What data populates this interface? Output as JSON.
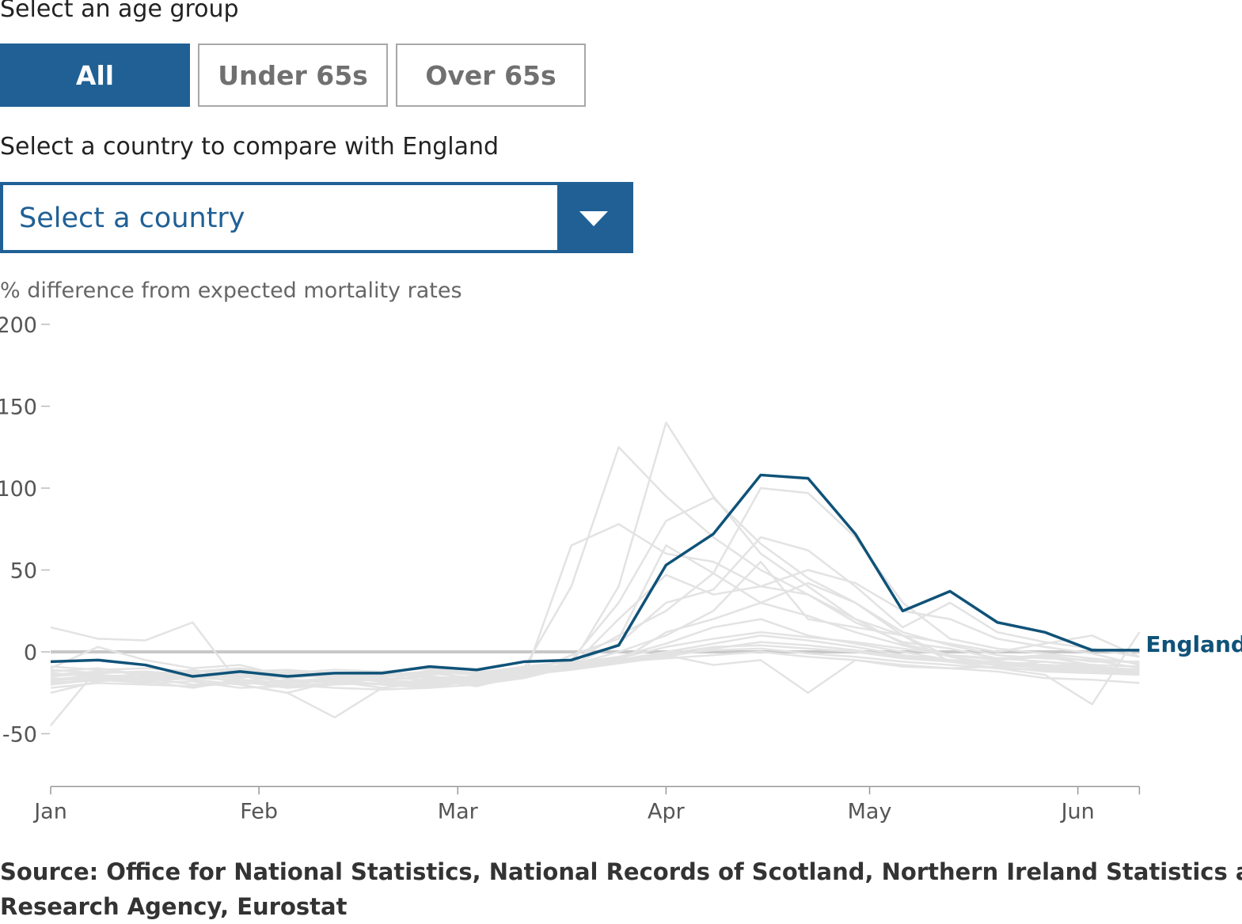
{
  "controls": {
    "age_label": "Select an age group",
    "age_buttons": [
      "All",
      "Under 65s",
      "Over 65s"
    ],
    "age_selected": "All",
    "country_label": "Select a country to compare with England",
    "country_placeholder": "Select a country"
  },
  "colors": {
    "accent": "#206095",
    "highlight_line": "#0f5278",
    "background_lines": "#e3e3e3",
    "zero_line": "#c8c8c8"
  },
  "chart_data": {
    "type": "line",
    "ylabel": "% difference from expected mortality rates",
    "ylim": [
      -75,
      200
    ],
    "yticks": [
      200,
      150,
      100,
      50,
      0,
      -50
    ],
    "xticks": [
      {
        "label": "Jan",
        "week": 0
      },
      {
        "label": "Feb",
        "week": 4.4
      },
      {
        "label": "Mar",
        "week": 8.6
      },
      {
        "label": "Apr",
        "week": 13
      },
      {
        "label": "May",
        "week": 17.3
      },
      {
        "label": "Jun",
        "week": 21.7
      }
    ],
    "x": [
      0,
      1,
      2,
      3,
      4,
      5,
      6,
      7,
      8,
      9,
      10,
      11,
      12,
      13,
      14,
      15,
      16,
      17,
      18,
      19,
      20,
      21,
      22,
      23
    ],
    "highlight": {
      "name": "England",
      "values": [
        -6,
        -5,
        -8,
        -15,
        -12,
        -15,
        -13,
        -13,
        -9,
        -11,
        -6,
        -5,
        4,
        53,
        72,
        108,
        106,
        72,
        25,
        37,
        18,
        12,
        1,
        1
      ]
    },
    "series": [
      {
        "values": [
          -18,
          -14,
          -16,
          -13,
          -15,
          -18,
          -16,
          -17,
          -15,
          -17,
          -12,
          -8,
          40,
          140,
          95,
          60,
          40,
          20,
          5,
          -2,
          -5,
          -3,
          -8,
          -9
        ]
      },
      {
        "values": [
          -12,
          -10,
          -14,
          -12,
          -11,
          -13,
          -15,
          -14,
          -12,
          -14,
          -10,
          40,
          125,
          95,
          70,
          50,
          35,
          18,
          6,
          2,
          -4,
          -2,
          -6,
          -6
        ]
      },
      {
        "values": [
          -15,
          -13,
          -12,
          -14,
          -16,
          -12,
          -14,
          -15,
          -13,
          -16,
          -11,
          -5,
          30,
          80,
          94,
          66,
          45,
          30,
          12,
          4,
          -2,
          -4,
          -5,
          -10
        ]
      },
      {
        "values": [
          -20,
          -17,
          -19,
          -18,
          -22,
          -21,
          -16,
          -18,
          -20,
          -19,
          -14,
          -6,
          10,
          25,
          48,
          100,
          97,
          70,
          30,
          8,
          2,
          -1,
          -4,
          -7
        ]
      },
      {
        "values": [
          -25,
          -18,
          -16,
          -20,
          -18,
          -22,
          -20,
          -19,
          -21,
          -18,
          -15,
          -8,
          5,
          30,
          38,
          70,
          62,
          40,
          15,
          30,
          12,
          6,
          2,
          -3
        ]
      },
      {
        "values": [
          15,
          8,
          7,
          18,
          -20,
          -25,
          -40,
          -22,
          -18,
          -16,
          -12,
          -8,
          0,
          10,
          25,
          55,
          20,
          15,
          10,
          5,
          0,
          5,
          10,
          -3
        ]
      },
      {
        "values": [
          -45,
          -10,
          -15,
          -12,
          -20,
          -25,
          -18,
          -20,
          -22,
          -20,
          -16,
          65,
          78,
          60,
          55,
          40,
          35,
          20,
          10,
          -6,
          -10,
          -14,
          -32,
          12
        ]
      },
      {
        "values": [
          -10,
          3,
          -5,
          -10,
          -8,
          -15,
          -14,
          -18,
          -11,
          -13,
          -9,
          -6,
          -5,
          -2,
          -8,
          -5,
          -25,
          -5,
          -9,
          -10,
          -12,
          -16,
          -17,
          -19
        ]
      },
      {
        "values": [
          -18,
          -15,
          -17,
          -16,
          -13,
          -19,
          -17,
          -20,
          -17,
          -21,
          -14,
          -2,
          8,
          65,
          48,
          30,
          42,
          30,
          10,
          -3,
          -8,
          -6,
          -9,
          -12
        ]
      },
      {
        "values": [
          -22,
          -19,
          -20,
          -21,
          -19,
          -20,
          -22,
          -23,
          -22,
          -17,
          -16,
          -9,
          20,
          47,
          35,
          40,
          50,
          42,
          25,
          20,
          8,
          3,
          -1,
          -8
        ]
      },
      {
        "values": [
          -14,
          -12,
          -13,
          -15,
          -14,
          -16,
          -14,
          -13,
          -16,
          -15,
          -12,
          -10,
          -6,
          12,
          20,
          30,
          22,
          12,
          4,
          -3,
          -7,
          -9,
          -10,
          -12
        ]
      },
      {
        "values": [
          -16,
          -18,
          -15,
          -17,
          -20,
          -17,
          -18,
          -22,
          -19,
          -18,
          -13,
          -7,
          -3,
          5,
          15,
          20,
          10,
          5,
          0,
          -5,
          -6,
          -8,
          -9,
          -11
        ]
      },
      {
        "values": [
          -9,
          -11,
          -10,
          -12,
          -10,
          -13,
          -11,
          -12,
          -10,
          -13,
          -10,
          -8,
          -4,
          3,
          8,
          12,
          9,
          6,
          2,
          -2,
          -4,
          -6,
          -8,
          -9
        ]
      },
      {
        "values": [
          -20,
          -16,
          -18,
          -22,
          -17,
          -21,
          -19,
          -20,
          -18,
          -19,
          -15,
          -10,
          -6,
          -4,
          -2,
          0,
          -3,
          -5,
          -8,
          -10,
          -9,
          -12,
          -13,
          -14
        ]
      },
      {
        "values": [
          -13,
          -15,
          -14,
          -11,
          -15,
          -14,
          -16,
          -15,
          -14,
          -12,
          -11,
          -9,
          -7,
          -3,
          2,
          6,
          4,
          1,
          -3,
          -6,
          -7,
          -8,
          -10,
          -11
        ]
      },
      {
        "values": [
          -17,
          -14,
          -16,
          -15,
          -18,
          -15,
          -14,
          -16,
          -17,
          -15,
          -13,
          -9,
          -5,
          0,
          5,
          10,
          7,
          3,
          -2,
          -5,
          -8,
          -10,
          -11,
          -13
        ]
      },
      {
        "values": [
          -11,
          -13,
          -12,
          -14,
          -12,
          -11,
          -13,
          -14,
          -12,
          -14,
          -12,
          -8,
          -6,
          -1,
          3,
          4,
          2,
          0,
          -4,
          -6,
          -8,
          -9,
          -10,
          -12
        ]
      },
      {
        "values": [
          -19,
          -17,
          -18,
          -16,
          -17,
          -19,
          -18,
          -17,
          -19,
          -17,
          -14,
          -11,
          -7,
          -2,
          1,
          2,
          -1,
          -3,
          -6,
          -8,
          -10,
          -11,
          -12,
          -13
        ]
      }
    ]
  },
  "source": {
    "line1": "Source: Office for National Statistics, National Records of Scotland, Northern Ireland Statistics and",
    "line2": "Research Agency, Eurostat"
  }
}
